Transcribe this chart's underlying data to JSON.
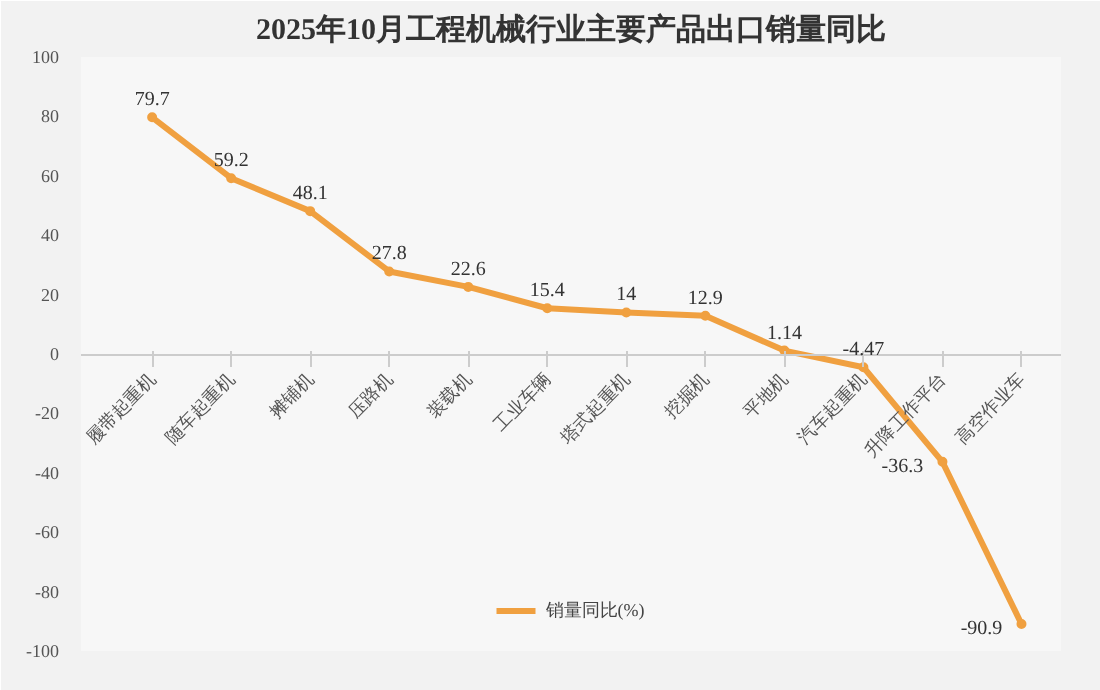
{
  "chart_data": {
    "type": "line",
    "title": "2025年10月工程机械行业主要产品出口销量同比",
    "categories": [
      "履带起重机",
      "随车起重机",
      "摊铺机",
      "压路机",
      "装载机",
      "工业车辆",
      "塔式起重机",
      "挖掘机",
      "平地机",
      "汽车起重机",
      "升降工作平台",
      "高空作业车"
    ],
    "series": [
      {
        "name": "销量同比(%)",
        "color": "#f0a040",
        "values": [
          79.7,
          59.2,
          48.1,
          27.8,
          22.6,
          15.4,
          14,
          12.9,
          1.14,
          -4.47,
          -36.3,
          -90.9
        ]
      }
    ],
    "ylim": [
      -100,
      100
    ],
    "yticks": [
      -100,
      -80,
      -60,
      -40,
      -20,
      0,
      20,
      40,
      60,
      80,
      100
    ],
    "data_labels": true,
    "legend": "bottom",
    "marker": "circle",
    "grid": false
  }
}
